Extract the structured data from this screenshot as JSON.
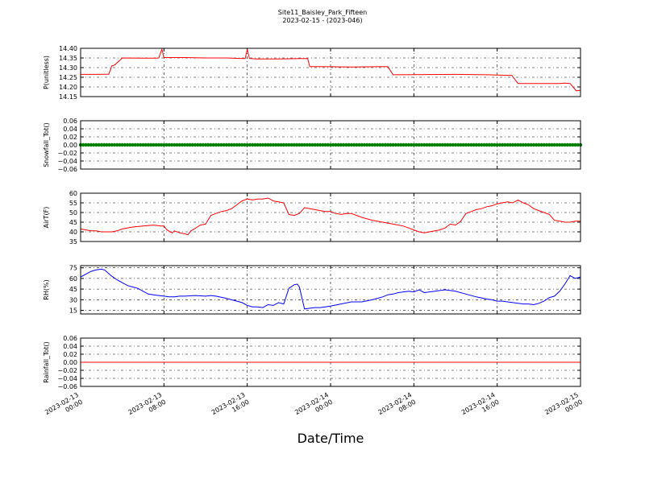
{
  "figure": {
    "title": "Site11_Baisley_Park_Fifteen",
    "subtitle": "2023-02-15 - (2023-046)",
    "xlabel": "Date/Time"
  },
  "x_ticks": [
    {
      "line1": "2023-02-13",
      "line2": "00:00"
    },
    {
      "line1": "2023-02-13",
      "line2": "08:00"
    },
    {
      "line1": "2023-02-13",
      "line2": "16:00"
    },
    {
      "line1": "2023-02-14",
      "line2": "00:00"
    },
    {
      "line1": "2023-02-14",
      "line2": "08:00"
    },
    {
      "line1": "2023-02-14",
      "line2": "16:00"
    },
    {
      "line1": "2023-02-15",
      "line2": "00:00"
    }
  ],
  "colors": {
    "red": "#ff0000",
    "green": "#008000",
    "blue": "#0000ff"
  },
  "chart_data": [
    {
      "type": "line",
      "ylabel": "P(unitless)",
      "x_range": [
        "2023-02-13 00:00",
        "2023-02-15 00:00"
      ],
      "ylim": [
        14.15,
        14.4
      ],
      "yticks": [
        "14.15",
        "14.20",
        "14.25",
        "14.30",
        "14.35",
        "14.40"
      ],
      "grid": true,
      "color": "#ff0000",
      "series": [
        {
          "x": [
            0,
            1.9,
            2.0,
            2.7,
            3.0,
            3.1,
            3.3,
            4.0,
            6.0,
            7.2,
            7.5,
            7.8,
            8.0,
            10.0,
            12.0,
            14.0,
            15.5,
            15.8,
            16.0,
            16.2,
            17.0,
            19.0,
            21.0,
            21.8,
            22.0,
            23.0,
            26.0,
            29.0,
            29.5,
            30.0,
            33.0,
            36.0,
            39.0,
            41.0,
            41.4,
            42.0,
            45.0,
            46.0,
            46.5,
            47.0,
            47.6,
            48.0
          ],
          "y": [
            14.265,
            14.265,
            14.266,
            14.266,
            14.31,
            14.31,
            14.315,
            14.35,
            14.349,
            14.349,
            14.35,
            14.395,
            14.352,
            14.352,
            14.35,
            14.35,
            14.347,
            14.347,
            14.395,
            14.347,
            14.345,
            14.345,
            14.347,
            14.347,
            14.305,
            14.305,
            14.303,
            14.305,
            14.305,
            14.263,
            14.264,
            14.265,
            14.263,
            14.26,
            14.26,
            14.218,
            14.218,
            14.218,
            14.22,
            14.218,
            14.18,
            14.183
          ]
        }
      ]
    },
    {
      "type": "scatter",
      "ylabel": "Snowfall_Tot()",
      "x_range": [
        "2023-02-13 00:00",
        "2023-02-15 00:00"
      ],
      "ylim": [
        -0.06,
        0.06
      ],
      "yticks": [
        "−0.06",
        "−0.04",
        "−0.02",
        "0.00",
        "0.02",
        "0.04",
        "0.06"
      ],
      "grid": true,
      "color": "#008000",
      "series": [
        {
          "x": [
            0,
            48
          ],
          "y": [
            0.0,
            0.0
          ]
        }
      ]
    },
    {
      "type": "line",
      "ylabel": "AirT(F)",
      "x_range": [
        "2023-02-13 00:00",
        "2023-02-15 00:00"
      ],
      "ylim": [
        35,
        60
      ],
      "yticks": [
        "35",
        "40",
        "45",
        "50",
        "55",
        "60"
      ],
      "grid": true,
      "color": "#ff0000",
      "series": [
        {
          "x": [
            0,
            0.5,
            1.0,
            1.5,
            2.0,
            3.0,
            3.5,
            4.0,
            5.0,
            6.0,
            7.0,
            7.7,
            8.0,
            8.3,
            8.6,
            8.8,
            9.0,
            9.5,
            10.0,
            10.3,
            10.6,
            10.9,
            11.2,
            11.5,
            12.0,
            12.5,
            13.0,
            13.5,
            14.0,
            14.5,
            15.0,
            15.5,
            16.0,
            16.5,
            17.0,
            17.5,
            18.0,
            18.5,
            19.0,
            19.5,
            20.0,
            20.5,
            21.0,
            21.5,
            22.0,
            22.5,
            23.0,
            23.5,
            24.0,
            24.5,
            25.0,
            25.5,
            26.0,
            26.5,
            27.0,
            28.0,
            29.0,
            30.0,
            31.0,
            32.0,
            32.5,
            33.0,
            33.5,
            34.0,
            34.5,
            35.0,
            35.5,
            36.0,
            36.5,
            37.0,
            37.5,
            38.0,
            38.5,
            39.0,
            39.5,
            40.0,
            40.5,
            41.0,
            41.5,
            42.0,
            42.5,
            43.0,
            43.5,
            44.0,
            44.5,
            45.0,
            45.5,
            46.0,
            46.5,
            47.0,
            47.5,
            48.0
          ],
          "y": [
            41.5,
            41.0,
            40.5,
            40.5,
            40.0,
            40.0,
            40.5,
            41.5,
            42.5,
            43.0,
            43.5,
            43.0,
            43.0,
            41.0,
            40.0,
            39.5,
            40.5,
            39.5,
            39.0,
            38.5,
            40.5,
            41.5,
            42.5,
            43.5,
            44.0,
            48.5,
            49.5,
            50.5,
            51.0,
            52.0,
            54.0,
            56.0,
            57.0,
            56.5,
            57.0,
            57.0,
            57.5,
            56.0,
            55.5,
            55.0,
            49.0,
            48.5,
            49.5,
            52.5,
            52.0,
            51.5,
            51.0,
            50.5,
            50.5,
            49.5,
            49.0,
            49.5,
            49.5,
            48.5,
            47.5,
            46.0,
            45.0,
            44.0,
            43.0,
            41.0,
            40.0,
            39.5,
            40.0,
            40.5,
            41.0,
            42.0,
            44.0,
            43.5,
            45.5,
            49.5,
            50.5,
            51.5,
            52.0,
            53.0,
            53.5,
            54.5,
            55.0,
            55.5,
            55.0,
            56.5,
            55.0,
            54.0,
            52.0,
            51.0,
            50.0,
            49.0,
            46.0,
            45.5,
            45.0,
            45.0,
            45.5,
            45.5
          ]
        }
      ]
    },
    {
      "type": "line",
      "ylabel": "RH(%)",
      "x_range": [
        "2023-02-13 00:00",
        "2023-02-15 00:00"
      ],
      "ylim": [
        10,
        78
      ],
      "yticks": [
        "15",
        "30",
        "45",
        "60",
        "75"
      ],
      "grid": true,
      "color": "#0000ff",
      "series": [
        {
          "x": [
            0,
            0.5,
            1.0,
            1.5,
            2.0,
            2.3,
            2.6,
            3.0,
            3.5,
            4.0,
            4.5,
            5.0,
            5.5,
            6.0,
            6.5,
            7.0,
            7.5,
            8.0,
            8.5,
            9.0,
            9.5,
            10.0,
            11.0,
            12.0,
            12.5,
            13.0,
            14.0,
            15.0,
            15.5,
            16.0,
            16.5,
            17.0,
            17.5,
            18.0,
            18.5,
            19.0,
            19.5,
            20.0,
            20.5,
            20.8,
            21.0,
            21.5,
            22.0,
            22.5,
            23.0,
            24.0,
            25.0,
            26.0,
            27.0,
            28.0,
            28.5,
            29.0,
            29.5,
            30.0,
            30.5,
            31.0,
            31.5,
            32.0,
            32.5,
            33.0,
            34.0,
            35.0,
            35.5,
            36.0,
            37.0,
            38.0,
            39.0,
            39.5,
            40.0,
            40.5,
            41.0,
            42.0,
            42.5,
            43.0,
            43.5,
            44.0,
            44.5,
            45.0,
            45.5,
            46.0,
            46.5,
            47.0,
            47.5,
            48.0
          ],
          "y": [
            62,
            66,
            70,
            72,
            73,
            72,
            68,
            63,
            58,
            54,
            50,
            48,
            46,
            42,
            38,
            37,
            36,
            35,
            34,
            34,
            35,
            35,
            36,
            35,
            36,
            35,
            32,
            28,
            26,
            22,
            20,
            20,
            19,
            23,
            22,
            26,
            24,
            46,
            51,
            52,
            48,
            17,
            18,
            19,
            19,
            21,
            24,
            27,
            27,
            30,
            32,
            34,
            37,
            38,
            40,
            41,
            42,
            41,
            44,
            40,
            42,
            44,
            43,
            42,
            38,
            34,
            31,
            30,
            28,
            28,
            27,
            25,
            24,
            24,
            23,
            25,
            28,
            33,
            35,
            42,
            52,
            64,
            60,
            62
          ]
        }
      ]
    },
    {
      "type": "line",
      "ylabel": "Rainfall_Tot()",
      "x_range": [
        "2023-02-13 00:00",
        "2023-02-15 00:00"
      ],
      "ylim": [
        -0.06,
        0.06
      ],
      "yticks": [
        "−0.06",
        "−0.04",
        "−0.02",
        "0.00",
        "0.02",
        "0.04",
        "0.06"
      ],
      "grid": true,
      "color": "#ff0000",
      "series": [
        {
          "x": [
            0,
            48
          ],
          "y": [
            0.0,
            0.0
          ]
        }
      ]
    }
  ]
}
